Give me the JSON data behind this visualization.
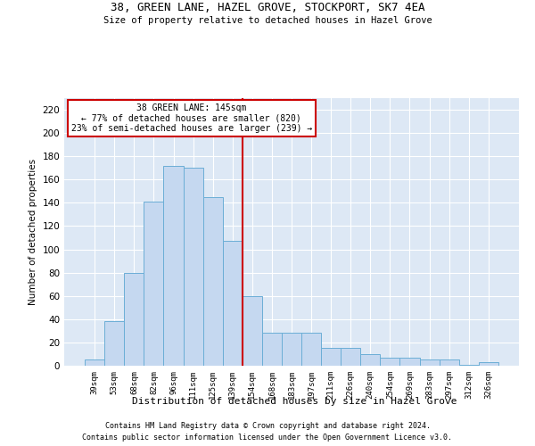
{
  "title": "38, GREEN LANE, HAZEL GROVE, STOCKPORT, SK7 4EA",
  "subtitle": "Size of property relative to detached houses in Hazel Grove",
  "xlabel": "Distribution of detached houses by size in Hazel Grove",
  "ylabel": "Number of detached properties",
  "footnote1": "Contains HM Land Registry data © Crown copyright and database right 2024.",
  "footnote2": "Contains public sector information licensed under the Open Government Licence v3.0.",
  "annotation_title": "38 GREEN LANE: 145sqm",
  "annotation_line1": "← 77% of detached houses are smaller (820)",
  "annotation_line2": "23% of semi-detached houses are larger (239) →",
  "categories": [
    "39sqm",
    "53sqm",
    "68sqm",
    "82sqm",
    "96sqm",
    "111sqm",
    "125sqm",
    "139sqm",
    "154sqm",
    "168sqm",
    "183sqm",
    "197sqm",
    "211sqm",
    "226sqm",
    "240sqm",
    "254sqm",
    "269sqm",
    "283sqm",
    "297sqm",
    "312sqm",
    "326sqm"
  ],
  "values": [
    5,
    38,
    80,
    141,
    172,
    170,
    145,
    107,
    60,
    28,
    28,
    28,
    15,
    15,
    10,
    7,
    7,
    5,
    5,
    1,
    3
  ],
  "bar_color": "#c5d8f0",
  "bar_edge_color": "#6baed6",
  "vline_color": "#cc0000",
  "vline_pos": 7.5,
  "annotation_box_color": "#cc0000",
  "background_color": "#dde8f5",
  "ylim": [
    0,
    230
  ],
  "yticks": [
    0,
    20,
    40,
    60,
    80,
    100,
    120,
    140,
    160,
    180,
    200,
    220
  ]
}
